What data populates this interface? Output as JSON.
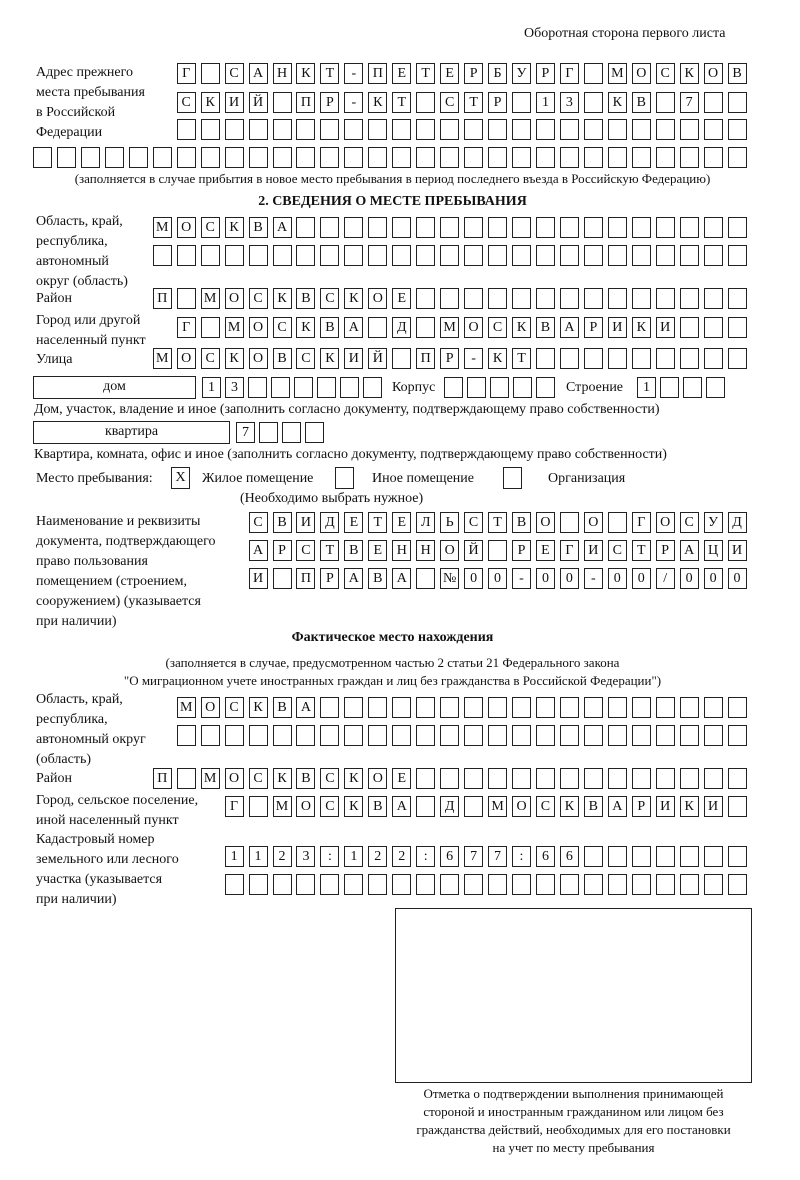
{
  "page_header": "Оборотная сторона первого листа",
  "previous_address": {
    "label": [
      "Адрес прежнего",
      "места пребывания",
      "в Российской",
      "Федерации"
    ],
    "rows": [
      [
        "Г",
        "",
        "С",
        "А",
        "Н",
        "К",
        "Т",
        "-",
        "П",
        "Е",
        "Т",
        "Е",
        "Р",
        "Б",
        "У",
        "Р",
        "Г",
        "",
        "М",
        "О",
        "С",
        "К",
        "О",
        "В"
      ],
      [
        "С",
        "К",
        "И",
        "Й",
        "",
        "П",
        "Р",
        "-",
        "К",
        "Т",
        "",
        "С",
        "Т",
        "Р",
        "",
        "1",
        "3",
        "",
        "К",
        "В",
        "",
        "7",
        "",
        ""
      ],
      [
        "",
        "",
        "",
        "",
        "",
        "",
        "",
        "",
        "",
        "",
        "",
        "",
        "",
        "",
        "",
        "",
        "",
        "",
        "",
        "",
        "",
        "",
        "",
        ""
      ],
      [
        "",
        "",
        "",
        "",
        "",
        "",
        "",
        "",
        "",
        "",
        "",
        "",
        "",
        "",
        "",
        "",
        "",
        "",
        "",
        "",
        "",
        "",
        "",
        "",
        "",
        "",
        "",
        "",
        "",
        ""
      ]
    ],
    "note": "(заполняется в случае прибытия в новое место пребывания в период последнего въезда в Российскую Федерацию)"
  },
  "section2": {
    "title": "2. СВЕДЕНИЯ О МЕСТЕ ПРЕБЫВАНИЯ",
    "region_label": [
      "Область, край,",
      "республика,",
      "автономный",
      "округ (область)"
    ],
    "region_rows": [
      [
        "М",
        "О",
        "С",
        "К",
        "В",
        "А",
        "",
        "",
        "",
        "",
        "",
        "",
        "",
        "",
        "",
        "",
        "",
        "",
        "",
        "",
        "",
        "",
        "",
        "",
        ""
      ],
      [
        "",
        "",
        "",
        "",
        "",
        "",
        "",
        "",
        "",
        "",
        "",
        "",
        "",
        "",
        "",
        "",
        "",
        "",
        "",
        "",
        "",
        "",
        "",
        "",
        ""
      ]
    ],
    "district_label": "Район",
    "district_row": [
      "П",
      "",
      "М",
      "О",
      "С",
      "К",
      "В",
      "С",
      "К",
      "О",
      "Е",
      "",
      "",
      "",
      "",
      "",
      "",
      "",
      "",
      "",
      "",
      "",
      "",
      "",
      ""
    ],
    "city_label": [
      "Город или другой",
      "населенный пункт"
    ],
    "city_row": [
      "Г",
      "",
      "М",
      "О",
      "С",
      "К",
      "В",
      "А",
      "",
      "Д",
      "",
      "М",
      "О",
      "С",
      "К",
      "В",
      "А",
      "Р",
      "И",
      "К",
      "И",
      "",
      "",
      ""
    ],
    "street_label": "Улица",
    "street_row": [
      "М",
      "О",
      "С",
      "К",
      "О",
      "В",
      "С",
      "К",
      "И",
      "Й",
      "",
      "П",
      "Р",
      "-",
      "К",
      "Т",
      "",
      "",
      "",
      "",
      "",
      "",
      "",
      "",
      ""
    ],
    "house_type": "дом",
    "house_cells": [
      "1",
      "3",
      "",
      "",
      "",
      "",
      "",
      ""
    ],
    "korpus_label": "Корпус",
    "korpus_cells": [
      "",
      "",
      "",
      "",
      ""
    ],
    "building_label": "Строение",
    "building_cells": [
      "1",
      "",
      "",
      ""
    ],
    "house_note": "Дом, участок, владение и иное (заполнить согласно документу, подтверждающему право собственности)",
    "flat_type": "квартира",
    "flat_cells": [
      "7",
      "",
      "",
      ""
    ],
    "flat_note": "Квартира, комната, офис и иное (заполнить согласно документу, подтверждающему право собственности)",
    "stay_place_label": "Место пребывания:",
    "stay_options": [
      {
        "mark": "X",
        "label": "Жилое помещение",
        "checked": true
      },
      {
        "mark": "",
        "label": "Иное помещение",
        "checked": false
      },
      {
        "mark": "",
        "label": "Организация",
        "checked": false
      }
    ],
    "stay_note": "(Необходимо выбрать нужное)",
    "doc_label": [
      "Наименование и реквизиты",
      "документа, подтверждающего",
      "право пользования",
      "помещением (строением,",
      "сооружением) (указывается",
      "при наличии)"
    ],
    "doc_rows": [
      [
        "С",
        "В",
        "И",
        "Д",
        "Е",
        "Т",
        "Е",
        "Л",
        "Ь",
        "С",
        "Т",
        "В",
        "О",
        "",
        "О",
        "",
        "Г",
        "О",
        "С",
        "У",
        "Д"
      ],
      [
        "А",
        "Р",
        "С",
        "Т",
        "В",
        "Е",
        "Н",
        "Н",
        "О",
        "Й",
        "",
        "Р",
        "Е",
        "Г",
        "И",
        "С",
        "Т",
        "Р",
        "А",
        "Ц",
        "И"
      ],
      [
        "И",
        "",
        "П",
        "Р",
        "А",
        "В",
        "А",
        "",
        "№",
        "0",
        "0",
        "-",
        "0",
        "0",
        "-",
        "0",
        "0",
        "/",
        "0",
        "0",
        "0"
      ]
    ]
  },
  "actual": {
    "title": "Фактическое место нахождения",
    "note": [
      "(заполняется в случае, предусмотренном частью 2 статьи 21 Федерального закона",
      "\"О миграционном учете иностранных граждан и лиц без гражданства в Российской Федерации\")"
    ],
    "region_label": [
      "Область, край,",
      "республика,",
      "автономный округ",
      "(область)"
    ],
    "region_rows": [
      [
        "М",
        "О",
        "С",
        "К",
        "В",
        "А",
        "",
        "",
        "",
        "",
        "",
        "",
        "",
        "",
        "",
        "",
        "",
        "",
        "",
        "",
        "",
        "",
        "",
        ""
      ],
      [
        "",
        "",
        "",
        "",
        "",
        "",
        "",
        "",
        "",
        "",
        "",
        "",
        "",
        "",
        "",
        "",
        "",
        "",
        "",
        "",
        "",
        "",
        "",
        ""
      ]
    ],
    "district_label": "Район",
    "district_row": [
      "П",
      "",
      "М",
      "О",
      "С",
      "К",
      "В",
      "С",
      "К",
      "О",
      "Е",
      "",
      "",
      "",
      "",
      "",
      "",
      "",
      "",
      "",
      "",
      "",
      "",
      "",
      ""
    ],
    "city_label": [
      "Город, сельское поселение,",
      "иной населенный пункт"
    ],
    "city_row": [
      "Г",
      "",
      "М",
      "О",
      "С",
      "К",
      "В",
      "А",
      "",
      "Д",
      "",
      "М",
      "О",
      "С",
      "К",
      "В",
      "А",
      "Р",
      "И",
      "К",
      "И",
      ""
    ],
    "cadastral_label": [
      "Кадастровый номер",
      "земельного или лесного",
      "участка (указывается",
      "при наличии)"
    ],
    "cadastral_rows": [
      [
        "1",
        "1",
        "2",
        "3",
        ":",
        "1",
        "2",
        "2",
        ":",
        "6",
        "7",
        "7",
        ":",
        "6",
        "6",
        "",
        "",
        "",
        "",
        "",
        "",
        ""
      ],
      [
        "",
        "",
        "",
        "",
        "",
        "",
        "",
        "",
        "",
        "",
        "",
        "",
        "",
        "",
        "",
        "",
        "",
        "",
        "",
        "",
        "",
        ""
      ]
    ]
  },
  "confirmation_caption": [
    "Отметка о подтверждении выполнения принимающей",
    "стороной и иностранным гражданином или лицом без",
    "гражданства действий, необходимых для его постановки",
    "на учет по месту пребывания"
  ]
}
